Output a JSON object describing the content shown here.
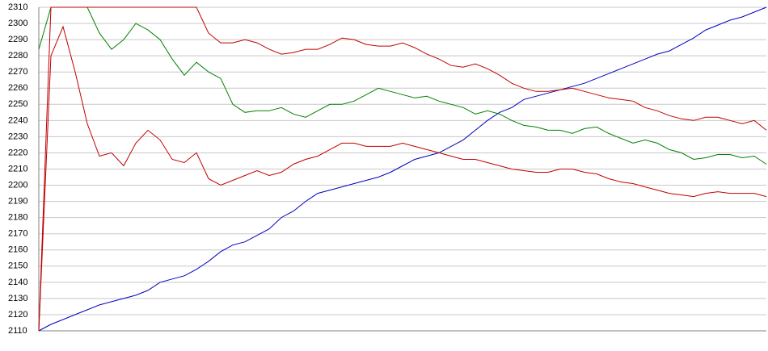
{
  "chart_data": {
    "type": "line",
    "ylim": [
      2110,
      2310
    ],
    "yticks": [
      2110,
      2120,
      2130,
      2140,
      2150,
      2160,
      2170,
      2180,
      2190,
      2200,
      2210,
      2220,
      2230,
      2240,
      2250,
      2260,
      2270,
      2280,
      2290,
      2300,
      2310
    ],
    "grid": true,
    "series": [
      {
        "color": "#0000c0",
        "values": [
          2110,
          2114,
          2117,
          2120,
          2123,
          2126,
          2128,
          2130,
          2132,
          2135,
          2140,
          2142,
          2144,
          2148,
          2153,
          2159,
          2163,
          2165,
          2169,
          2173,
          2180,
          2184,
          2190,
          2195,
          2197,
          2199,
          2201,
          2203,
          2205,
          2208,
          2212,
          2216,
          2218,
          2220,
          2224,
          2228,
          2234,
          2240,
          2245,
          2248,
          2253,
          2255,
          2257,
          2259,
          2261,
          2263,
          2266,
          2269,
          2272,
          2275,
          2278,
          2281,
          2283,
          2287,
          2291,
          2296,
          2299,
          2302,
          2304,
          2307,
          2310
        ]
      },
      {
        "color": "#008000",
        "values": [
          2284,
          2310,
          2310,
          2310,
          2310,
          2294,
          2284,
          2290,
          2300,
          2296,
          2290,
          2278,
          2268,
          2276,
          2270,
          2266,
          2250,
          2245,
          2246,
          2246,
          2248,
          2244,
          2242,
          2246,
          2250,
          2250,
          2252,
          2256,
          2260,
          2258,
          2256,
          2254,
          2255,
          2252,
          2250,
          2248,
          2244,
          2246,
          2244,
          2240,
          2237,
          2236,
          2234,
          2234,
          2232,
          2235,
          2236,
          2232,
          2229,
          2226,
          2228,
          2226,
          2222,
          2220,
          2216,
          2217,
          2219,
          2219,
          2217,
          2218,
          2213
        ]
      },
      {
        "color": "#c00000",
        "values": [
          2110,
          2310,
          2310,
          2310,
          2310,
          2310,
          2310,
          2310,
          2310,
          2310,
          2310,
          2310,
          2310,
          2310,
          2294,
          2288,
          2288,
          2290,
          2288,
          2284,
          2281,
          2282,
          2284,
          2284,
          2287,
          2291,
          2290,
          2287,
          2286,
          2286,
          2288,
          2285,
          2281,
          2278,
          2274,
          2273,
          2275,
          2272,
          2268,
          2263,
          2260,
          2258,
          2258,
          2259,
          2260,
          2258,
          2256,
          2254,
          2253,
          2252,
          2248,
          2246,
          2243,
          2241,
          2240,
          2242,
          2242,
          2240,
          2238,
          2240,
          2234
        ]
      },
      {
        "color": "#c00000",
        "values": [
          2110,
          2280,
          2298,
          2270,
          2238,
          2218,
          2220,
          2212,
          2226,
          2234,
          2228,
          2216,
          2214,
          2220,
          2204,
          2200,
          2203,
          2206,
          2209,
          2206,
          2208,
          2213,
          2216,
          2218,
          2222,
          2226,
          2226,
          2224,
          2224,
          2224,
          2226,
          2224,
          2222,
          2220,
          2218,
          2216,
          2216,
          2214,
          2212,
          2210,
          2209,
          2208,
          2208,
          2210,
          2210,
          2208,
          2207,
          2204,
          2202,
          2201,
          2199,
          2197,
          2195,
          2194,
          2193,
          2195,
          2196,
          2195,
          2195,
          2195,
          2193
        ]
      }
    ]
  }
}
